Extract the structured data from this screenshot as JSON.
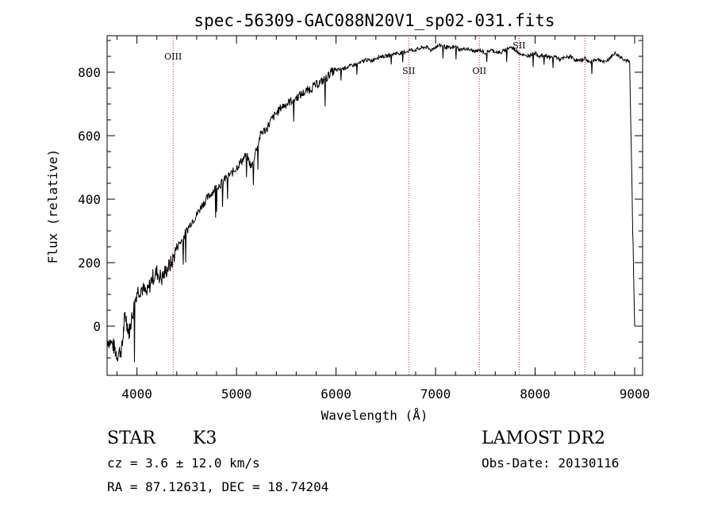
{
  "chart_data": {
    "type": "line",
    "title": "spec-56309-GAC088N20V1_sp02-031.fits",
    "xlabel": "Wavelength (Å)",
    "ylabel": "Flux (relative)",
    "xlim": [
      3700,
      9080
    ],
    "ylim": [
      -155,
      915
    ],
    "x_ticks": [
      4000,
      5000,
      6000,
      7000,
      8000,
      9000
    ],
    "y_ticks": [
      0,
      200,
      400,
      600,
      800
    ],
    "x_tick_labels": [
      "4000",
      "5000",
      "6000",
      "7000",
      "8000",
      "9000"
    ],
    "y_tick_labels": [
      "0",
      "200",
      "400",
      "600",
      "800"
    ],
    "grid": false,
    "series": [
      {
        "name": "flux",
        "x": [
          3700,
          3760,
          3800,
          3850,
          3880,
          3920,
          3950,
          4000,
          4050,
          4100,
          4150,
          4200,
          4250,
          4300,
          4350,
          4400,
          4450,
          4500,
          4550,
          4600,
          4650,
          4700,
          4750,
          4800,
          4850,
          4900,
          4950,
          5000,
          5050,
          5100,
          5150,
          5200,
          5250,
          5300,
          5350,
          5400,
          5450,
          5500,
          5550,
          5600,
          5650,
          5700,
          5750,
          5800,
          5850,
          5900,
          5950,
          6000,
          6050,
          6100,
          6150,
          6200,
          6250,
          6300,
          6350,
          6400,
          6450,
          6500,
          6550,
          6600,
          6650,
          6700,
          6750,
          6800,
          6850,
          6900,
          6950,
          7000,
          7050,
          7100,
          7150,
          7200,
          7250,
          7300,
          7350,
          7400,
          7450,
          7500,
          7550,
          7600,
          7650,
          7700,
          7750,
          7800,
          7850,
          7900,
          7950,
          8000,
          8050,
          8100,
          8150,
          8200,
          8250,
          8300,
          8350,
          8400,
          8450,
          8500,
          8550,
          8600,
          8650,
          8700,
          8750,
          8800,
          8850,
          8900,
          8950,
          9000
        ],
        "y": [
          -40,
          -60,
          -90,
          -70,
          40,
          -20,
          30,
          110,
          120,
          100,
          150,
          170,
          150,
          180,
          200,
          250,
          270,
          300,
          330,
          350,
          380,
          400,
          420,
          440,
          450,
          470,
          480,
          500,
          520,
          540,
          500,
          560,
          610,
          620,
          650,
          670,
          690,
          700,
          710,
          720,
          730,
          740,
          750,
          760,
          770,
          780,
          800,
          805,
          810,
          815,
          820,
          825,
          830,
          840,
          835,
          845,
          850,
          850,
          855,
          860,
          860,
          865,
          870,
          870,
          875,
          880,
          870,
          880,
          885,
          880,
          875,
          880,
          870,
          875,
          870,
          865,
          870,
          860,
          870,
          865,
          860,
          870,
          880,
          870,
          860,
          850,
          855,
          860,
          850,
          855,
          845,
          850,
          840,
          845,
          850,
          840,
          835,
          845,
          830,
          840,
          840,
          830,
          845,
          860,
          850,
          840,
          830,
          0
        ]
      }
    ],
    "lines": [
      {
        "label": "OIII",
        "x": 4363
      },
      {
        "label": "SII",
        "x": 6731
      },
      {
        "label": "OII",
        "x": 7440
      },
      {
        "label": "SII",
        "x": 7840
      },
      {
        "label": "",
        "x": 8500
      }
    ]
  },
  "info": {
    "class_label": "STAR",
    "subclass": "K3",
    "survey": "LAMOST DR2",
    "redshift_line": "cz = 3.6 ± 12.0 km/s",
    "obs_date_line": "Obs-Date: 20130116",
    "coords_line": "RA =  87.12631, DEC =  18.74204"
  },
  "colors": {
    "spectrum": "#000000",
    "lines": "#b22222",
    "axes": "#000000"
  }
}
